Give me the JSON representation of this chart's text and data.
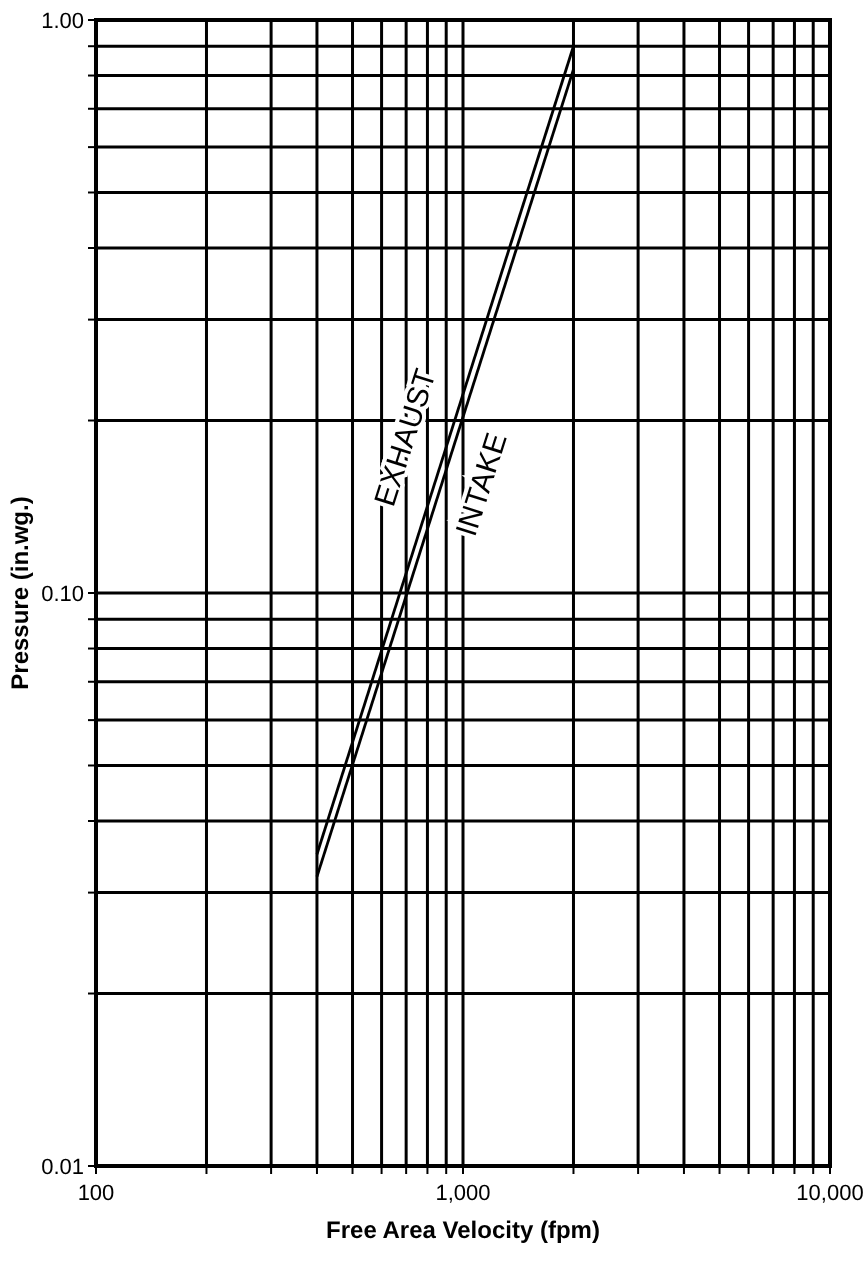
{
  "chart_data": {
    "type": "line",
    "xlabel": "Free Area Velocity (fpm)",
    "ylabel": "Pressure (in.wg.)",
    "log": "xy",
    "grid": true,
    "marker": "none",
    "line_style": "solid",
    "xlim": [
      100,
      10000
    ],
    "ylim": [
      0.01,
      1
    ],
    "xticks": [
      100,
      {
        "value": 200,
        "label": null
      },
      {
        "value": 300,
        "label": null
      },
      {
        "value": 400,
        "label": null
      },
      {
        "value": 500,
        "label": null
      },
      {
        "value": 600,
        "label": null
      },
      {
        "value": 700,
        "label": null
      },
      {
        "value": 800,
        "label": null
      },
      {
        "value": 900,
        "label": null
      },
      {
        "value": 1000,
        "label": "1,000"
      },
      {
        "value": 2000,
        "label": null
      },
      {
        "value": 3000,
        "label": null
      },
      {
        "value": 4000,
        "label": null
      },
      {
        "value": 5000,
        "label": null
      },
      {
        "value": 6000,
        "label": null
      },
      {
        "value": 7000,
        "label": null
      },
      {
        "value": 8000,
        "label": null
      },
      {
        "value": 9000,
        "label": null
      },
      {
        "value": 10000,
        "label": "10,000"
      }
    ],
    "yticks": [
      0.01,
      {
        "value": 0.02,
        "label": null
      },
      {
        "value": 0.03,
        "label": null
      },
      {
        "value": 0.04,
        "label": null
      },
      {
        "value": 0.05,
        "label": null
      },
      {
        "value": 0.06,
        "label": null
      },
      {
        "value": 0.07,
        "label": null
      },
      {
        "value": 0.08,
        "label": null
      },
      {
        "value": 0.09,
        "label": null
      },
      {
        "value": 0.1,
        "label": "0.10"
      },
      {
        "value": 0.2,
        "label": null
      },
      {
        "value": 0.3,
        "label": null
      },
      {
        "value": 0.4,
        "label": null
      },
      {
        "value": 0.5,
        "label": null
      },
      {
        "value": 0.6,
        "label": null
      },
      {
        "value": 0.7,
        "label": null
      },
      {
        "value": 0.8,
        "label": null
      },
      {
        "value": 0.9,
        "label": null
      },
      {
        "value": 1,
        "label": "1.00"
      }
    ],
    "x": [
      400,
      2000
    ],
    "series": [
      {
        "name": "EXHAUST",
        "color": "#000000",
        "values": [
          0.035,
          0.9
        ]
      },
      {
        "name": "INTAKE",
        "color": "#000000",
        "values": [
          0.032,
          0.82
        ]
      }
    ]
  }
}
